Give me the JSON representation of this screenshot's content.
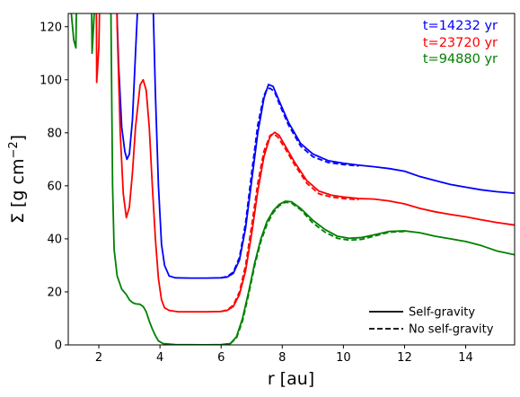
{
  "chart_data": {
    "type": "line",
    "xlabel": "r [au]",
    "ylabel_prefix": "Σ [g cm",
    "ylabel_exponent": "−2",
    "ylabel_suffix": "]",
    "xlim": [
      1.0,
      15.6
    ],
    "ylim": [
      0,
      125
    ],
    "xticks": [
      2,
      4,
      6,
      8,
      10,
      12,
      14
    ],
    "yticks": [
      0,
      20,
      40,
      60,
      80,
      100,
      120
    ],
    "grid": false,
    "time_labels_position": "top-right",
    "linestyle_legend_position": "lower-right",
    "linestyle_legend": [
      {
        "label": "Self-gravity",
        "style": "solid"
      },
      {
        "label": "No self-gravity",
        "style": "dashed"
      }
    ],
    "series": [
      {
        "name": "t=14232 yr",
        "color": "#0000ff",
        "self_gravity": [
          [
            1.0,
            160
          ],
          [
            1.22,
            135
          ],
          [
            1.3,
            200
          ],
          [
            2.0,
            200
          ],
          [
            2.45,
            200
          ],
          [
            2.55,
            140
          ],
          [
            2.65,
            105
          ],
          [
            2.75,
            82
          ],
          [
            2.85,
            73
          ],
          [
            2.92,
            70
          ],
          [
            3.0,
            72
          ],
          [
            3.1,
            85
          ],
          [
            3.2,
            110
          ],
          [
            3.3,
            135
          ],
          [
            3.5,
            200
          ],
          [
            3.65,
            200
          ],
          [
            3.75,
            140
          ],
          [
            3.85,
            95
          ],
          [
            3.95,
            60
          ],
          [
            4.05,
            38
          ],
          [
            4.15,
            30
          ],
          [
            4.3,
            26
          ],
          [
            4.5,
            25.3
          ],
          [
            5.0,
            25.2
          ],
          [
            5.5,
            25.2
          ],
          [
            6.0,
            25.3
          ],
          [
            6.2,
            25.6
          ],
          [
            6.4,
            27
          ],
          [
            6.6,
            32
          ],
          [
            6.8,
            44
          ],
          [
            7.0,
            62
          ],
          [
            7.2,
            80
          ],
          [
            7.4,
            93
          ],
          [
            7.55,
            98.2
          ],
          [
            7.7,
            97.5
          ],
          [
            7.9,
            92
          ],
          [
            8.2,
            84
          ],
          [
            8.6,
            76
          ],
          [
            9.0,
            72
          ],
          [
            9.5,
            69.5
          ],
          [
            10.0,
            68.5
          ],
          [
            10.5,
            67.8
          ],
          [
            11.0,
            67.2
          ],
          [
            11.5,
            66.5
          ],
          [
            12.0,
            65.5
          ],
          [
            12.5,
            63.5
          ],
          [
            13.0,
            62
          ],
          [
            13.5,
            60.5
          ],
          [
            14.0,
            59.5
          ],
          [
            14.5,
            58.5
          ],
          [
            15.0,
            57.8
          ],
          [
            15.6,
            57.2
          ]
        ],
        "no_self_gravity": [
          [
            6.0,
            25.3
          ],
          [
            6.2,
            25.8
          ],
          [
            6.4,
            27.5
          ],
          [
            6.6,
            33
          ],
          [
            6.8,
            46
          ],
          [
            7.0,
            65
          ],
          [
            7.2,
            83
          ],
          [
            7.4,
            94
          ],
          [
            7.5,
            96.5
          ],
          [
            7.6,
            96.8
          ],
          [
            7.75,
            95.5
          ],
          [
            7.9,
            91
          ],
          [
            8.2,
            83
          ],
          [
            8.6,
            75
          ],
          [
            9.0,
            71
          ],
          [
            9.5,
            68.8
          ],
          [
            10.0,
            68
          ],
          [
            10.5,
            67.5
          ]
        ]
      },
      {
        "name": "t=23720 yr",
        "color": "#ff0000",
        "self_gravity": [
          [
            1.0,
            160
          ],
          [
            1.2,
            130
          ],
          [
            1.3,
            200
          ],
          [
            1.9,
            200
          ],
          [
            1.93,
            99
          ],
          [
            2.0,
            112
          ],
          [
            2.15,
            200
          ],
          [
            2.5,
            200
          ],
          [
            2.6,
            120
          ],
          [
            2.7,
            80
          ],
          [
            2.8,
            57
          ],
          [
            2.9,
            48
          ],
          [
            3.0,
            52
          ],
          [
            3.1,
            65
          ],
          [
            3.2,
            82
          ],
          [
            3.35,
            98
          ],
          [
            3.45,
            100
          ],
          [
            3.55,
            96
          ],
          [
            3.65,
            82
          ],
          [
            3.75,
            60
          ],
          [
            3.85,
            40
          ],
          [
            3.95,
            25
          ],
          [
            4.05,
            17
          ],
          [
            4.15,
            14
          ],
          [
            4.3,
            13
          ],
          [
            4.6,
            12.5
          ],
          [
            5.0,
            12.5
          ],
          [
            5.5,
            12.5
          ],
          [
            6.0,
            12.6
          ],
          [
            6.2,
            13
          ],
          [
            6.4,
            14.5
          ],
          [
            6.6,
            19
          ],
          [
            6.8,
            28
          ],
          [
            7.0,
            42
          ],
          [
            7.2,
            58
          ],
          [
            7.4,
            71
          ],
          [
            7.6,
            78.5
          ],
          [
            7.75,
            80.2
          ],
          [
            7.9,
            79
          ],
          [
            8.1,
            75
          ],
          [
            8.4,
            69
          ],
          [
            8.8,
            62
          ],
          [
            9.2,
            58
          ],
          [
            9.6,
            56.5
          ],
          [
            10.0,
            55.8
          ],
          [
            10.5,
            55.2
          ],
          [
            11.0,
            55
          ],
          [
            11.5,
            54.3
          ],
          [
            12.0,
            53.2
          ],
          [
            12.5,
            51.5
          ],
          [
            13.0,
            50.2
          ],
          [
            13.5,
            49.2
          ],
          [
            14.0,
            48.3
          ],
          [
            14.5,
            47.2
          ],
          [
            15.0,
            46.2
          ],
          [
            15.6,
            45.2
          ]
        ],
        "no_self_gravity": [
          [
            6.0,
            12.6
          ],
          [
            6.2,
            13.2
          ],
          [
            6.4,
            15
          ],
          [
            6.6,
            20
          ],
          [
            6.8,
            30
          ],
          [
            7.0,
            45
          ],
          [
            7.2,
            61
          ],
          [
            7.4,
            73
          ],
          [
            7.6,
            79
          ],
          [
            7.7,
            79.6
          ],
          [
            7.85,
            78.5
          ],
          [
            8.1,
            74
          ],
          [
            8.4,
            68
          ],
          [
            8.8,
            61
          ],
          [
            9.2,
            57
          ],
          [
            9.6,
            55.8
          ],
          [
            10.0,
            55.2
          ],
          [
            10.5,
            54.8
          ]
        ]
      },
      {
        "name": "t=94880 yr",
        "color": "#008000",
        "self_gravity": [
          [
            1.0,
            130
          ],
          [
            1.1,
            125
          ],
          [
            1.18,
            115
          ],
          [
            1.25,
            112
          ],
          [
            1.35,
            200
          ],
          [
            1.7,
            200
          ],
          [
            1.78,
            110
          ],
          [
            1.85,
            125
          ],
          [
            1.95,
            200
          ],
          [
            2.35,
            200
          ],
          [
            2.4,
            120
          ],
          [
            2.45,
            60
          ],
          [
            2.5,
            36
          ],
          [
            2.6,
            26
          ],
          [
            2.75,
            21
          ],
          [
            2.9,
            19
          ],
          [
            3.0,
            17
          ],
          [
            3.1,
            16
          ],
          [
            3.2,
            15.5
          ],
          [
            3.35,
            15.3
          ],
          [
            3.45,
            14.5
          ],
          [
            3.55,
            12.5
          ],
          [
            3.65,
            9
          ],
          [
            3.75,
            6
          ],
          [
            3.85,
            3.5
          ],
          [
            3.95,
            1.5
          ],
          [
            4.1,
            0.5
          ],
          [
            4.5,
            0.1
          ],
          [
            5.5,
            0.05
          ],
          [
            6.0,
            0.1
          ],
          [
            6.3,
            0.5
          ],
          [
            6.5,
            3
          ],
          [
            6.7,
            10
          ],
          [
            6.9,
            20
          ],
          [
            7.1,
            31
          ],
          [
            7.3,
            40
          ],
          [
            7.5,
            46.5
          ],
          [
            7.7,
            50.5
          ],
          [
            7.9,
            53
          ],
          [
            8.1,
            54.2
          ],
          [
            8.3,
            54
          ],
          [
            8.6,
            51.5
          ],
          [
            9.0,
            47
          ],
          [
            9.4,
            43.5
          ],
          [
            9.8,
            41
          ],
          [
            10.2,
            40.2
          ],
          [
            10.6,
            40.5
          ],
          [
            11.0,
            41.5
          ],
          [
            11.5,
            42.8
          ],
          [
            12.0,
            43
          ],
          [
            12.5,
            42.3
          ],
          [
            13.0,
            41
          ],
          [
            13.5,
            40
          ],
          [
            14.0,
            39
          ],
          [
            14.5,
            37.5
          ],
          [
            15.0,
            35.5
          ],
          [
            15.6,
            34
          ]
        ],
        "no_self_gravity": [
          [
            6.3,
            0.5
          ],
          [
            6.5,
            2.5
          ],
          [
            6.7,
            9
          ],
          [
            6.9,
            19
          ],
          [
            7.1,
            30
          ],
          [
            7.3,
            39
          ],
          [
            7.5,
            45.5
          ],
          [
            7.7,
            49.8
          ],
          [
            7.9,
            52.5
          ],
          [
            8.1,
            53.8
          ],
          [
            8.3,
            53.5
          ],
          [
            8.6,
            51
          ],
          [
            9.0,
            46
          ],
          [
            9.4,
            42.5
          ],
          [
            9.8,
            40.2
          ],
          [
            10.2,
            39.5
          ],
          [
            10.6,
            39.8
          ],
          [
            11.0,
            41
          ],
          [
            11.5,
            42.5
          ],
          [
            12.0,
            42.8
          ]
        ]
      }
    ]
  }
}
